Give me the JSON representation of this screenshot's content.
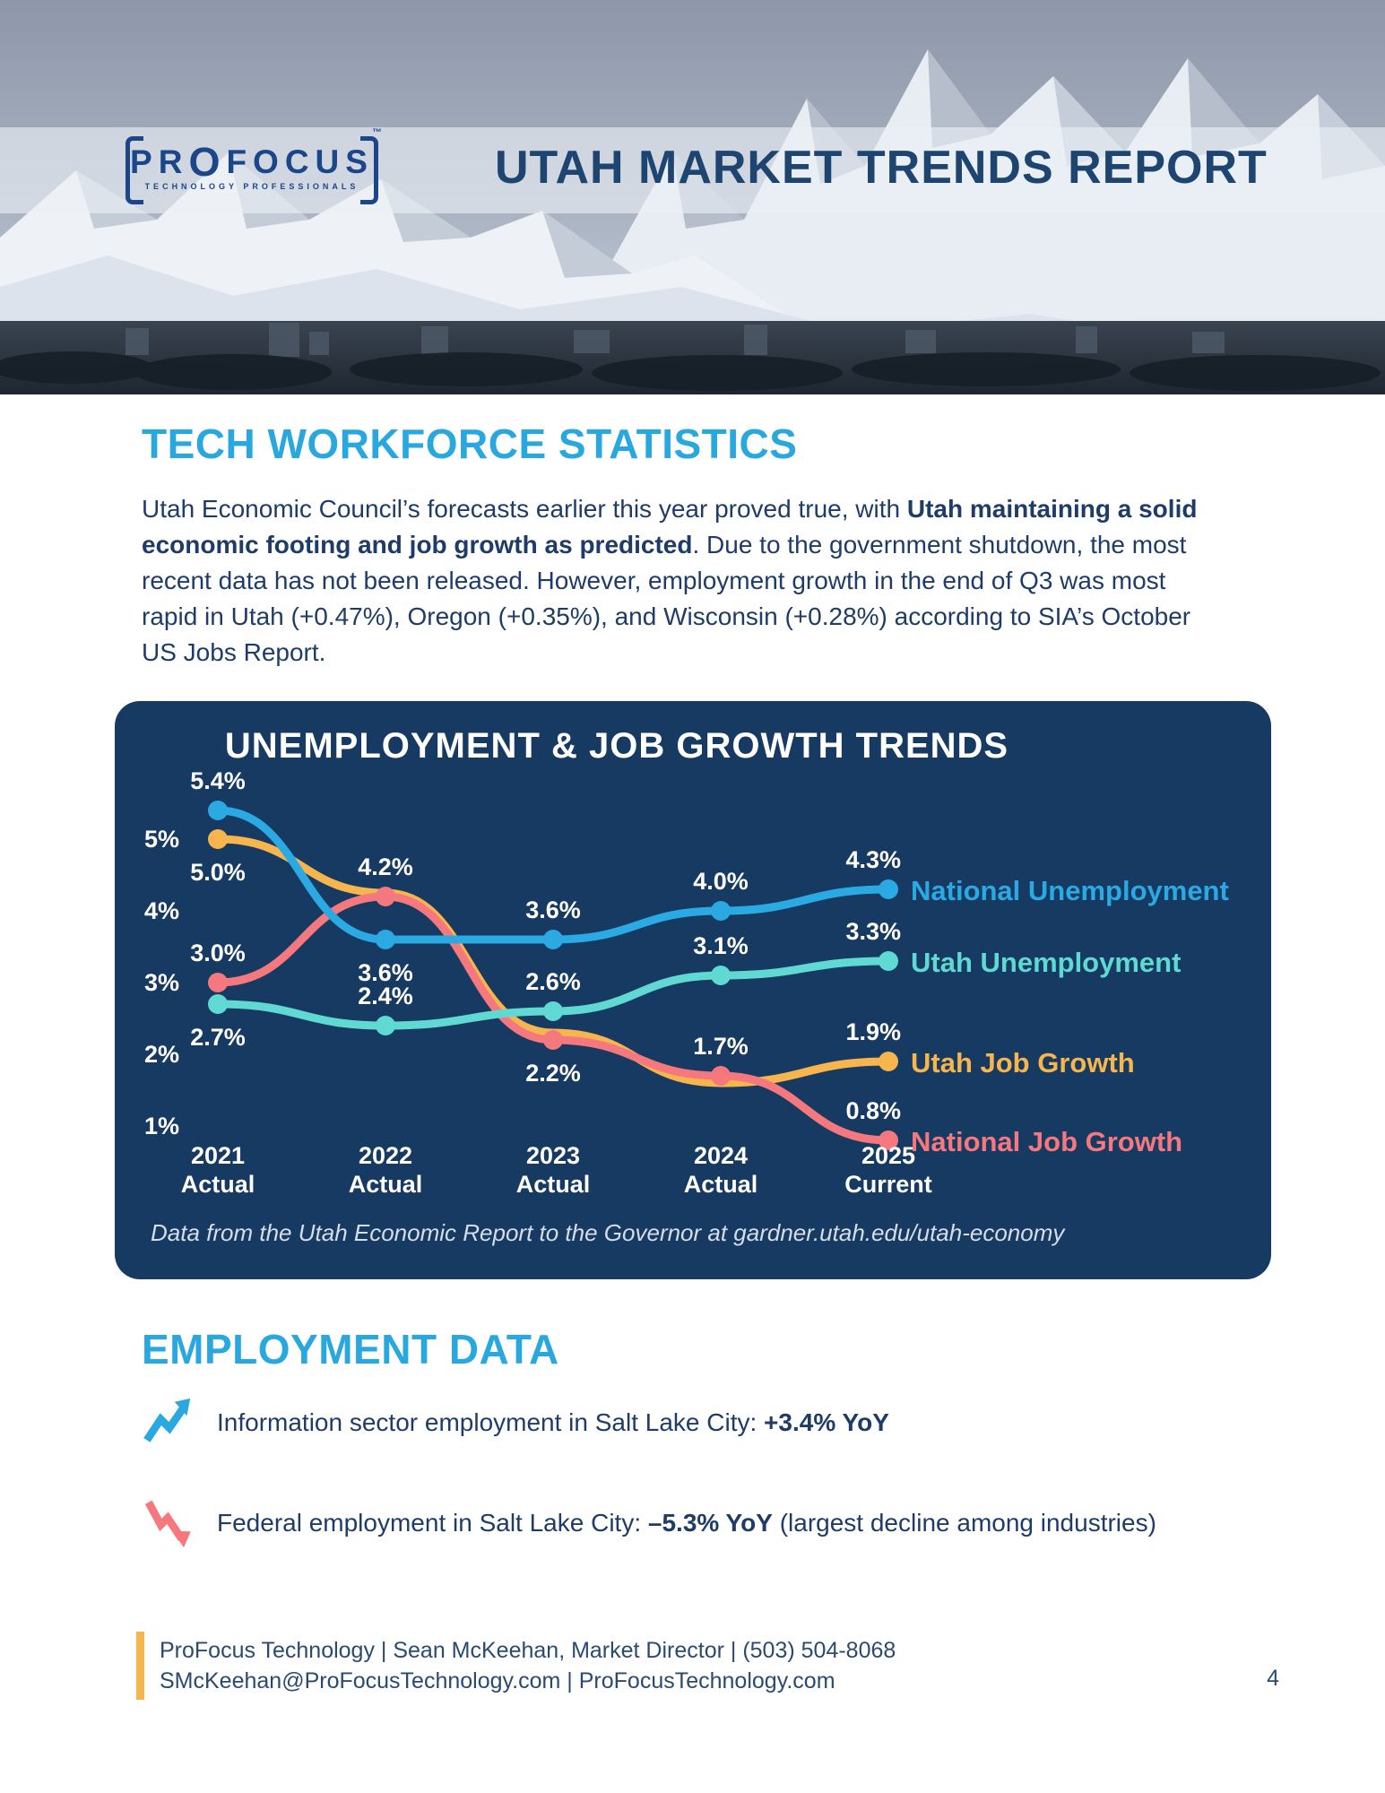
{
  "header": {
    "logo": {
      "text_pre": "PR",
      "text_o": "O",
      "text_post": "FOCUS",
      "tm": "™",
      "tagline": "TECHNOLOGY PROFESSIONALS"
    },
    "title": "UTAH MARKET TRENDS REPORT"
  },
  "section1": {
    "heading": "TECH WORKFORCE STATISTICS",
    "paragraph": {
      "pre": "Utah Economic Council’s forecasts earlier this year proved true, with ",
      "bold": "Utah maintaining a solid economic footing and job growth as predicted",
      "post": ". Due to the government shutdown, the most recent data has not been released. However, employment growth in the end of Q3 was most rapid in Utah (+0.47%), Oregon (+0.35%), and Wisconsin (+0.28%) according to SIA’s October US Jobs Report."
    }
  },
  "chart_data": {
    "type": "line",
    "title": "UNEMPLOYMENT & JOB GROWTH TRENDS",
    "caption": "Data from the Utah Economic Report to the Governor at gardner.utah.edu/utah-economy",
    "background_color": "#163A61",
    "ylim": [
      0.5,
      6.0
    ],
    "grid": false,
    "legend_position": "right-of-last-point",
    "y_ticks": [
      {
        "value": 5,
        "label": "5%"
      },
      {
        "value": 4,
        "label": "4%"
      },
      {
        "value": 3,
        "label": "3%"
      },
      {
        "value": 2,
        "label": "2%"
      },
      {
        "value": 1,
        "label": "1%"
      }
    ],
    "categories": [
      {
        "line1": "2021",
        "line2": "Actual"
      },
      {
        "line1": "2022",
        "line2": "Actual"
      },
      {
        "line1": "2023",
        "line2": "Actual"
      },
      {
        "line1": "2024",
        "line2": "Actual"
      },
      {
        "line1": "2025",
        "line2": "Current"
      }
    ],
    "series": [
      {
        "name": "Utah Job Growth",
        "color": "#F7B54E",
        "values": [
          5.0,
          4.25,
          2.3,
          1.6,
          1.9
        ],
        "labels": [
          "5.0%",
          null,
          null,
          null,
          "1.9%"
        ],
        "label_pos": [
          "below",
          null,
          null,
          null,
          "above"
        ],
        "marker_indices": [
          0,
          4
        ]
      },
      {
        "name": "National Job Growth",
        "color": "#F4787D",
        "values": [
          3.0,
          4.2,
          2.2,
          1.7,
          0.8
        ],
        "labels": [
          "3.0%",
          "4.2%",
          "2.2%",
          "1.7%",
          "0.8%"
        ],
        "label_pos": [
          "above",
          "above",
          "below",
          "above",
          "above"
        ],
        "marker_indices": [
          0,
          1,
          2,
          3,
          4
        ]
      },
      {
        "name": "National Unemployment",
        "color": "#2BA9E2",
        "values": [
          5.4,
          3.6,
          3.6,
          4.0,
          4.3
        ],
        "labels": [
          "5.4%",
          "3.6%",
          "3.6%",
          "4.0%",
          "4.3%"
        ],
        "label_pos": [
          "above",
          "below",
          "above",
          "above",
          "above"
        ],
        "marker_indices": [
          0,
          1,
          2,
          3,
          4
        ]
      },
      {
        "name": "Utah Unemployment",
        "color": "#5FD9D2",
        "values": [
          2.7,
          2.4,
          2.6,
          3.1,
          3.3
        ],
        "labels": [
          "2.7%",
          "2.4%",
          "2.6%",
          "3.1%",
          "3.3%"
        ],
        "label_pos": [
          "below",
          "above",
          "above",
          "above",
          "above"
        ],
        "marker_indices": [
          0,
          1,
          2,
          3,
          4
        ]
      }
    ]
  },
  "section2": {
    "heading": "EMPLOYMENT DATA",
    "bullets": [
      {
        "icon": "trend-up",
        "icon_color": "#2AA9E0",
        "pre": "Information sector employment in Salt Lake City: ",
        "bold": "+3.4% YoY",
        "post": ""
      },
      {
        "icon": "trend-down",
        "icon_color": "#F4787D",
        "pre": "Federal employment in Salt Lake City: ",
        "bold": "–5.3% YoY",
        "post": " (largest decline among industries)"
      }
    ]
  },
  "footer": {
    "line1": "ProFocus Technology |  Sean McKeehan, Market Director | (503) 504-8068",
    "line2": "SMcKeehan@ProFocusTechnology.com | ProFocusTechnology.com",
    "page_number": "4",
    "accent_color": "#F7B54E"
  }
}
